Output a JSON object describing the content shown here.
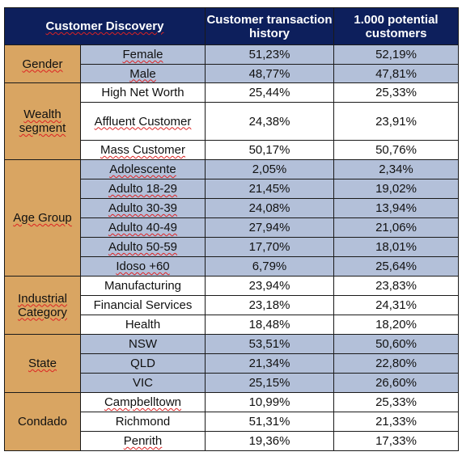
{
  "header": {
    "corner": "Customer Discovery",
    "col1": "Customer transaction history",
    "col2": "1.000 potential customers"
  },
  "groups": [
    {
      "name": "Gender",
      "rows": [
        {
          "label": "Female",
          "hist": "51,23%",
          "pot": "52,19%"
        },
        {
          "label": "Male",
          "hist": "48,77%",
          "pot": "47,81%"
        }
      ]
    },
    {
      "name": "Wealth segment",
      "rows": [
        {
          "label": "High Net Worth",
          "hist": "25,44%",
          "pot": "25,33%"
        },
        {
          "label": "Affluent Customer",
          "hist": "24,38%",
          "pot": "23,91%"
        },
        {
          "label": "Mass Customer",
          "hist": "50,17%",
          "pot": "50,76%"
        }
      ]
    },
    {
      "name": "Age Group",
      "rows": [
        {
          "label": "Adolescente",
          "hist": "2,05%",
          "pot": "2,34%"
        },
        {
          "label": "Adulto 18-29",
          "hist": "21,45%",
          "pot": "19,02%"
        },
        {
          "label": "Adulto 30-39",
          "hist": "24,08%",
          "pot": "13,94%"
        },
        {
          "label": "Adulto 40-49",
          "hist": "27,94%",
          "pot": "21,06%"
        },
        {
          "label": "Adulto 50-59",
          "hist": "17,70%",
          "pot": "18,01%"
        },
        {
          "label": "Idoso +60",
          "hist": "6,79%",
          "pot": "25,64%"
        }
      ]
    },
    {
      "name": "Industrial Category",
      "rows": [
        {
          "label": "Manufacturing",
          "hist": "23,94%",
          "pot": "23,83%"
        },
        {
          "label": "Financial Services",
          "hist": "23,18%",
          "pot": "24,31%"
        },
        {
          "label": "Health",
          "hist": "18,48%",
          "pot": "18,20%"
        }
      ]
    },
    {
      "name": "State",
      "rows": [
        {
          "label": "NSW",
          "hist": "53,51%",
          "pot": "50,60%"
        },
        {
          "label": "QLD",
          "hist": "21,34%",
          "pot": "22,80%"
        },
        {
          "label": "VIC",
          "hist": "25,15%",
          "pot": "26,60%"
        }
      ]
    },
    {
      "name": "Condado",
      "rows": [
        {
          "label": "Campbelltown",
          "hist": "10,99%",
          "pot": "25,33%"
        },
        {
          "label": "Richmond",
          "hist": "51,31%",
          "pot": "21,33%"
        },
        {
          "label": "Penrith",
          "hist": "19,36%",
          "pot": "17,33%"
        }
      ]
    }
  ]
}
